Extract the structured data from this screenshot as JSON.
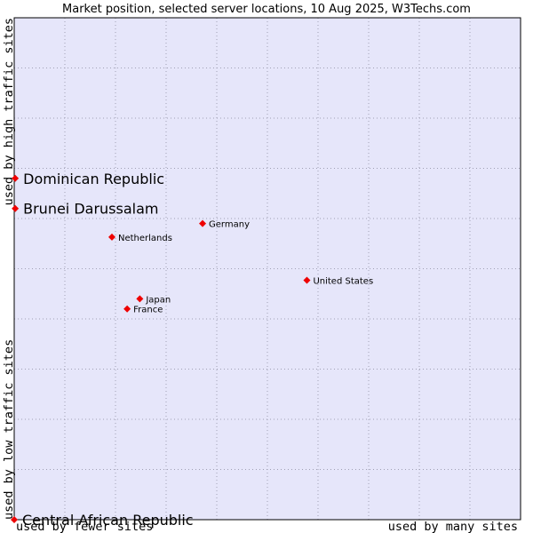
{
  "chart_data": {
    "type": "scatter",
    "title": "Market position, selected server locations, 10 Aug 2025, W3Techs.com",
    "xlabel_low": "used by fewer sites",
    "xlabel_high": "used by many sites",
    "ylabel_low": "used by low traffic sites",
    "ylabel_high": "used by high traffic sites",
    "xlim": [
      0,
      10
    ],
    "ylim": [
      0,
      10
    ],
    "grid": true,
    "points": [
      {
        "name": "Dominican Republic",
        "x": 0.02,
        "y": 6.8,
        "emphasis": true
      },
      {
        "name": "Brunei Darussalam",
        "x": 0.02,
        "y": 6.2,
        "emphasis": true
      },
      {
        "name": "Germany",
        "x": 3.72,
        "y": 5.9,
        "emphasis": false
      },
      {
        "name": "Netherlands",
        "x": 1.93,
        "y": 5.63,
        "emphasis": false
      },
      {
        "name": "United States",
        "x": 5.78,
        "y": 4.77,
        "emphasis": false
      },
      {
        "name": "Japan",
        "x": 2.48,
        "y": 4.4,
        "emphasis": false
      },
      {
        "name": "France",
        "x": 2.23,
        "y": 4.2,
        "emphasis": false
      },
      {
        "name": "Central African Republic",
        "x": 0.0,
        "y": 0.0,
        "emphasis": true
      }
    ]
  },
  "colors": {
    "plot_bg": "#e6e6fa",
    "grid": "#a0a0b4",
    "point": "#ee0000",
    "frame": "#000000"
  }
}
